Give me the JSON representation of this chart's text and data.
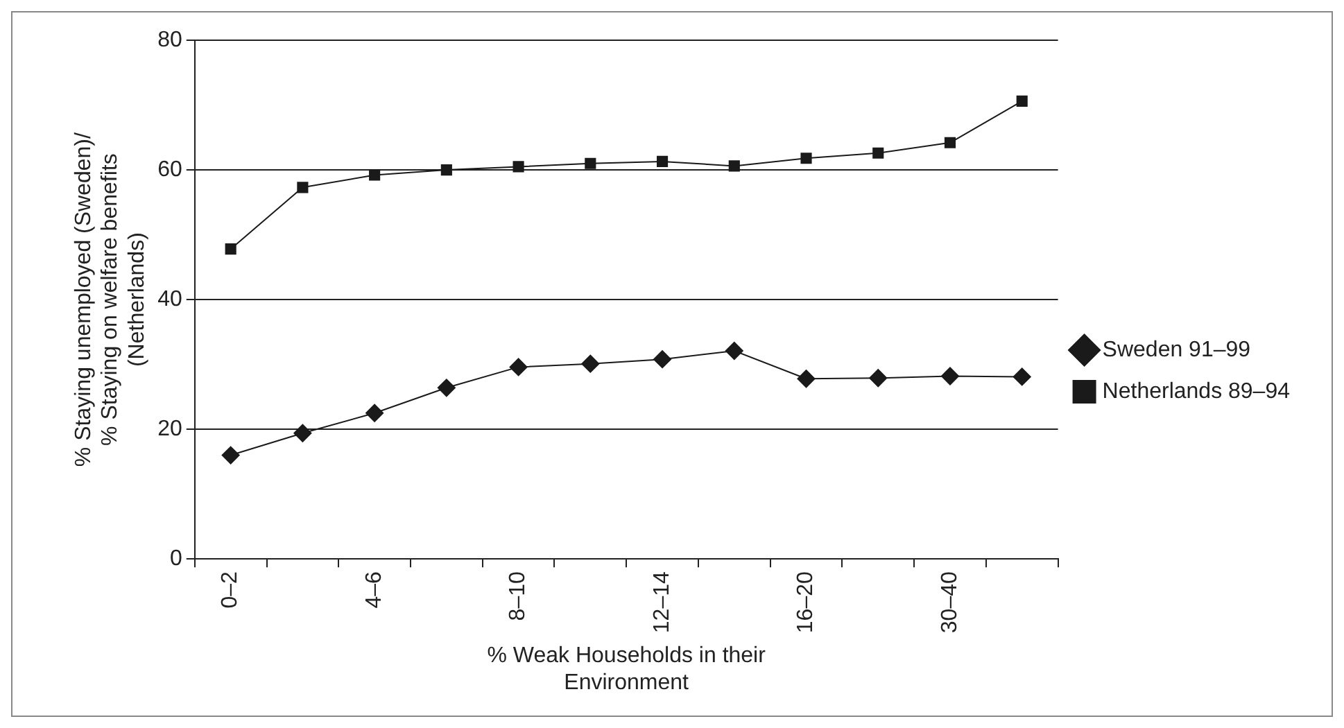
{
  "chart_data": {
    "type": "line",
    "xlabel": "% Weak Households in their Environment",
    "ylabel": "% Staying unemployed (Sweden)/ % Staying on welfare benefits (Netherlands)",
    "categories": [
      "0–2",
      null,
      "4–6",
      null,
      "8–10",
      null,
      "12–14",
      null,
      "16–20",
      null,
      "30–40",
      null
    ],
    "series": [
      {
        "name": "Sweden 91–99",
        "color": "#1a1a1a",
        "marker": "diamond",
        "values": [
          16,
          19.4,
          22.5,
          26.4,
          29.6,
          30.1,
          30.8,
          32.1,
          27.8,
          27.9,
          28.2,
          28.1
        ]
      },
      {
        "name": "Netherlands 89–94",
        "color": "#1a1a1a",
        "marker": "square",
        "values": [
          47.8,
          57.3,
          59.2,
          60,
          60.5,
          61,
          61.3,
          60.6,
          61.8,
          62.6,
          64.2,
          70.6
        ]
      }
    ],
    "ylim": [
      0,
      80
    ],
    "yticks": [
      0,
      20,
      40,
      60,
      80
    ],
    "grid": "y",
    "legend": "right",
    "line_style": "solid"
  }
}
